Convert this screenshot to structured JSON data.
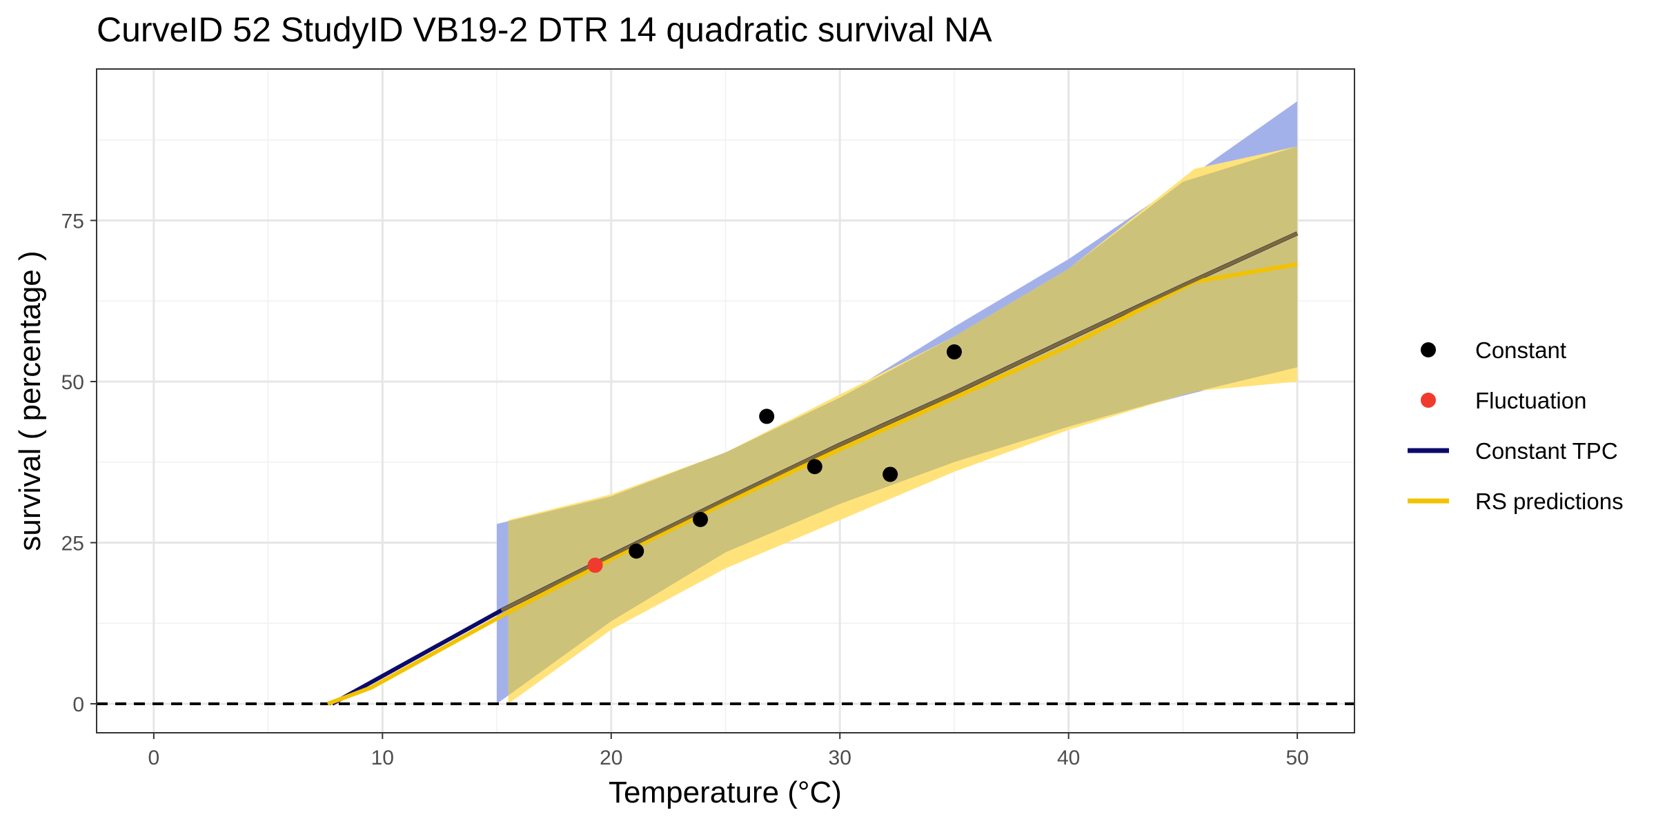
{
  "chart_data": {
    "type": "line",
    "title": "CurveID 52 StudyID VB19-2 DTR 14 quadratic survival NA",
    "xlabel": "Temperature (°C)",
    "ylabel": "survival ( percentage )",
    "xlim": [
      -2.5,
      52.5
    ],
    "ylim": [
      -4.5,
      98.5
    ],
    "x_ticks": [
      0,
      10,
      20,
      30,
      40,
      50
    ],
    "y_ticks": [
      0,
      25,
      50,
      75
    ],
    "grid": true,
    "legend_position": "right",
    "reference_line": {
      "y": 0,
      "style": "dashed",
      "color": "#000000"
    },
    "colors": {
      "constant_points": "#000000",
      "fluctuation_points": "#F03A2E",
      "constant_tpc": "#0B0B6B",
      "rs_predictions": "#F2C200",
      "constant_band": "#A3B1EA",
      "rs_band": "#FFE37A",
      "overlap_band": "#CDC27A",
      "overlap_line": "#7C6A3A"
    },
    "legend": [
      {
        "label": "Constant",
        "kind": "point",
        "color": "#000000"
      },
      {
        "label": "Fluctuation",
        "kind": "point",
        "color": "#F03A2E"
      },
      {
        "label": "Constant TPC",
        "kind": "line",
        "color": "#0B0B6B"
      },
      {
        "label": "RS predictions",
        "kind": "line",
        "color": "#F2C200"
      }
    ],
    "series": [
      {
        "name": "Constant",
        "type": "scatter",
        "points": [
          [
            21.1,
            23.7
          ],
          [
            23.9,
            28.6
          ],
          [
            26.8,
            44.6
          ],
          [
            28.9,
            36.8
          ],
          [
            32.2,
            35.6
          ],
          [
            35.0,
            54.6
          ]
        ]
      },
      {
        "name": "Fluctuation",
        "type": "scatter",
        "points": [
          [
            19.3,
            21.5
          ]
        ]
      },
      {
        "name": "Constant TPC",
        "type": "line",
        "points": [
          [
            7.8,
            0.0
          ],
          [
            15.2,
            14.5
          ],
          [
            20.0,
            23.0
          ],
          [
            25.0,
            31.7
          ],
          [
            30.0,
            40.2
          ],
          [
            35.0,
            48.2
          ],
          [
            40.0,
            56.6
          ],
          [
            45.0,
            64.9
          ],
          [
            50.0,
            73.0
          ]
        ],
        "band_x": [
          15.0,
          20.0,
          25.0,
          30.0,
          35.0,
          40.0,
          45.0,
          50.0
        ],
        "band_lower": [
          0.0,
          12.8,
          23.5,
          31.0,
          37.5,
          43.0,
          47.8,
          52.2
        ],
        "band_upper": [
          27.9,
          32.2,
          39.0,
          47.5,
          58.5,
          69.0,
          81.0,
          93.5
        ]
      },
      {
        "name": "RS predictions",
        "type": "line",
        "points": [
          [
            7.6,
            0.0
          ],
          [
            9.5,
            2.5
          ],
          [
            15.5,
            14.2
          ],
          [
            20.0,
            22.5
          ],
          [
            25.0,
            31.2
          ],
          [
            30.0,
            39.5
          ],
          [
            35.0,
            47.5
          ],
          [
            40.0,
            55.5
          ],
          [
            45.5,
            65.5
          ],
          [
            50.0,
            68.2
          ]
        ],
        "band_x": [
          15.5,
          20.0,
          25.0,
          30.0,
          35.0,
          40.0,
          45.5,
          50.0
        ],
        "band_lower": [
          0.0,
          11.5,
          21.0,
          28.5,
          36.0,
          42.5,
          48.5,
          50.0
        ],
        "band_upper": [
          28.5,
          32.5,
          39.0,
          48.0,
          57.0,
          67.5,
          83.0,
          86.5
        ]
      }
    ]
  }
}
